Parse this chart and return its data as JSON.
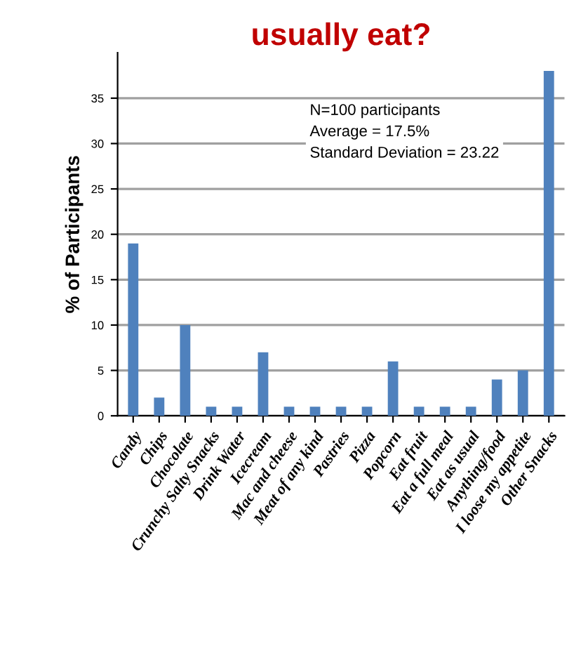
{
  "chart_data": {
    "type": "bar",
    "title": "usually eat?",
    "ylabel": "% of Participants",
    "categories": [
      "Candy",
      "Chips",
      "Chocolate",
      "Crunchy Salty Snacks",
      "Drink Water",
      "Icecream",
      "Mac and cheese",
      "Meat of any kind",
      "Pastries",
      "Pizza",
      "Popcorn",
      "Eat fruit",
      "Eat a full meal",
      "Eat as usual",
      "Anything/food",
      "I loose my appetite",
      "Other Snacks"
    ],
    "values": [
      19,
      2,
      10,
      1,
      1,
      7,
      1,
      1,
      1,
      1,
      6,
      1,
      1,
      1,
      4,
      5,
      38
    ],
    "color": "#4f81bd",
    "ylim": [
      0,
      40
    ],
    "yticks": [
      0,
      5,
      10,
      15,
      20,
      25,
      30,
      35
    ],
    "grid": "y",
    "annotations": [
      "N=100 participants\nAverage = 17.5%\nStandard Deviation = 23.22"
    ]
  }
}
